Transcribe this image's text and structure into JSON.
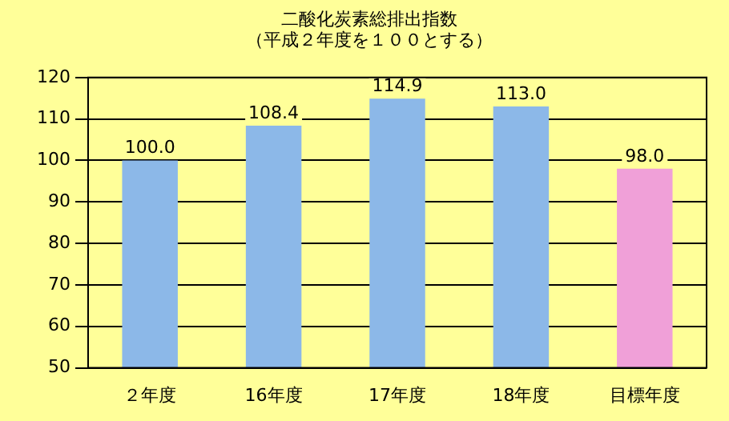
{
  "chart_data": {
    "type": "bar",
    "title": "二酸化炭素総排出指数",
    "subtitle": "（平成２年度を１００とする）",
    "categories": [
      "２年度",
      "16年度",
      "17年度",
      "18年度",
      "目標年度"
    ],
    "values": [
      100.0,
      108.4,
      114.9,
      113.0,
      98.0
    ],
    "colors": [
      "#8cb8e8",
      "#8cb8e8",
      "#8cb8e8",
      "#8cb8e8",
      "#f0a0d8"
    ],
    "value_labels": [
      "100.0",
      "108.4",
      "114.9",
      "113.0",
      "98.0"
    ],
    "ylim": [
      50,
      120
    ],
    "yticks": [
      50,
      60,
      70,
      80,
      90,
      100,
      110,
      120
    ],
    "grid": "y",
    "legend": false
  }
}
